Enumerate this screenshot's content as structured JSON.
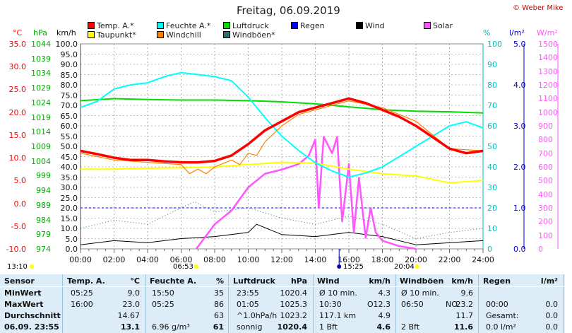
{
  "title": "Freitag, 06.09.2019",
  "copyright": "© Weber Mike",
  "legend": [
    {
      "label": "Temp. A.*",
      "color": "#ff0000"
    },
    {
      "label": "Feuchte A.*",
      "color": "#00ffff"
    },
    {
      "label": "Luftdruck",
      "color": "#00dd00"
    },
    {
      "label": "Regen",
      "color": "#0000ff"
    },
    {
      "label": "Wind",
      "color": "#000000"
    },
    {
      "label": "Solar",
      "color": "#ff55ff"
    },
    {
      "label": "Taupunkt*",
      "color": "#ffff00"
    },
    {
      "label": "Windchill",
      "color": "#ff8000"
    },
    {
      "label": "Windböen*",
      "color": "#2f6f6f"
    }
  ],
  "axis_headers": {
    "temp": "°C",
    "pressure": "hPa",
    "wind": "km/h",
    "humidity": "%",
    "rain": "l/m²",
    "solar": "W/m²"
  },
  "axes": {
    "temp": [
      "35.0",
      "30.0",
      "25.0",
      "20.0",
      "15.0",
      "10.0",
      "5.0",
      "0.0",
      "-5.0",
      "-10.0"
    ],
    "pressure": [
      "1044",
      "1039",
      "1034",
      "1029",
      "1024",
      "1019",
      "1014",
      "1009",
      "1004",
      "999",
      "994",
      "989",
      "984",
      "979",
      "974"
    ],
    "wind": [
      "100.0",
      "95.0",
      "90.0",
      "85.0",
      "80.0",
      "75.0",
      "70.0",
      "65.0",
      "60.0",
      "55.0",
      "50.0",
      "45.0",
      "40.0",
      "35.0",
      "30.0",
      "25.0",
      "20.0",
      "15.0",
      "10.0",
      "5.0",
      "0.0"
    ],
    "humidity": [
      "100",
      "90",
      "80",
      "70",
      "60",
      "50",
      "40",
      "30",
      "20",
      "10",
      "0"
    ],
    "rain": [
      "5.0",
      "4.0",
      "3.0",
      "2.0",
      "1.0",
      "0.0"
    ],
    "solar": [
      "1500",
      "1400",
      "1300",
      "1200",
      "1100",
      "1000",
      "900",
      "800",
      "700",
      "600",
      "500",
      "400",
      "300",
      "200",
      "100",
      "0"
    ],
    "time": [
      "00:00",
      "02:00",
      "04:00",
      "06:00",
      "08:00",
      "10:00",
      "12:00",
      "14:00",
      "16:00",
      "18:00",
      "20:00",
      "22:00",
      "24:00"
    ]
  },
  "sun_markers": {
    "left": "13:10",
    "sunrise": "06:53",
    "peak": "15:25",
    "sunset": "20:04"
  },
  "table": {
    "headers": [
      "Sensor",
      "Temp. A.",
      "°C",
      "Feuchte A.",
      "%",
      "Luftdruck",
      "hPa",
      "Wind",
      "km/h",
      "Windböen",
      "km/h",
      "Regen",
      "l/m²"
    ],
    "rows": [
      {
        "label": "MinWert",
        "temp_time": "05:25",
        "temp": "9.0",
        "hum_time": "15:50",
        "hum": "35",
        "press_time": "23:55",
        "press": "1020.4",
        "wind_a": "Ø 10 min.",
        "wind_b": "4.3",
        "gust_a": "Ø 10 min.",
        "gust_b": "9.6",
        "rain_a": "",
        "rain_b": ""
      },
      {
        "label": "MaxWert",
        "temp_time": "16:00",
        "temp": "23.0",
        "hum_time": "05:25",
        "hum": "86",
        "press_time": "01:05",
        "press": "1025.3",
        "wind_a": "10:30",
        "wind_mid": "O",
        "wind_b": "12.3",
        "gust_a": "06:50",
        "gust_mid": "NO",
        "gust_b": "23.2",
        "rain_a": "00:00",
        "rain_b": "0.0"
      },
      {
        "label": "Durchschnitt",
        "temp_time": "",
        "temp": "14.67",
        "hum_time": "",
        "hum": "63",
        "press_time": "^1.0hPa/h",
        "press": "1023.2",
        "wind_a": "117.1 km",
        "wind_b": "4.9",
        "gust_a": "",
        "gust_b": "11.7",
        "rain_a": "Gesamt:",
        "rain_b": "0.0"
      },
      {
        "label": "06.09. 23:55",
        "temp_time": "",
        "temp": "13.1",
        "hum_time": "6.96 g/m³",
        "hum": "61",
        "press_time": "sonnig",
        "press": "1020.4",
        "wind_a": "1 Bft",
        "wind_b": "4.6",
        "gust_a": "2 Bft",
        "gust_b": "11.6",
        "rain_a": "0.0 l/m²",
        "rain_b": "0.0"
      }
    ]
  },
  "chart_data": {
    "type": "line",
    "title": "Freitag, 06.09.2019",
    "x_unit": "hours",
    "xlim": [
      0,
      24
    ],
    "series": [
      {
        "name": "Temp. A.*",
        "axis": "°C",
        "ylim": [
          -10,
          35
        ],
        "color": "#ff0000",
        "x": [
          0,
          1,
          2,
          3,
          4,
          5,
          6,
          7,
          8,
          9,
          10,
          11,
          12,
          13,
          14,
          15,
          16,
          17,
          18,
          19,
          20,
          21,
          22,
          23,
          24
        ],
        "values": [
          11.5,
          10.8,
          10.0,
          9.5,
          9.5,
          9.2,
          9.0,
          9.0,
          9.3,
          10.5,
          13.0,
          16.0,
          18.0,
          20.0,
          21.0,
          22.0,
          23.0,
          22.0,
          20.5,
          19.0,
          17.0,
          14.5,
          12.0,
          11.0,
          11.5
        ]
      },
      {
        "name": "Taupunkt*",
        "axis": "°C",
        "ylim": [
          -10,
          35
        ],
        "color": "#ffff00",
        "x": [
          0,
          2,
          4,
          6,
          8,
          10,
          12,
          14,
          16,
          18,
          20,
          22,
          24
        ],
        "values": [
          7.5,
          7.5,
          7.7,
          7.8,
          8.0,
          8.5,
          9.0,
          8.8,
          7.5,
          6.5,
          6.0,
          4.5,
          5.0
        ]
      },
      {
        "name": "Windchill",
        "axis": "°C",
        "ylim": [
          -10,
          35
        ],
        "color": "#ff8000",
        "x": [
          0,
          2,
          4,
          6,
          6.5,
          7,
          7.5,
          8,
          9,
          9.5,
          10,
          10.5,
          11,
          12,
          13,
          14,
          16,
          18,
          20,
          22,
          24
        ],
        "values": [
          11.0,
          9.5,
          9.0,
          8.5,
          6.5,
          7.5,
          6.5,
          8.0,
          9.5,
          8.5,
          11.0,
          10.5,
          13.5,
          17.0,
          19.5,
          20.5,
          22.5,
          21.0,
          18.0,
          12.0,
          11.5
        ]
      },
      {
        "name": "Feuchte A.*",
        "axis": "%",
        "ylim": [
          0,
          100
        ],
        "color": "#00ffff",
        "x": [
          0,
          1,
          2,
          3,
          4,
          5,
          6,
          7,
          8,
          9,
          10,
          11,
          12,
          13,
          14,
          15,
          16,
          17,
          18,
          19,
          20,
          21,
          22,
          23,
          24
        ],
        "values": [
          69,
          72,
          78,
          80,
          81,
          84,
          86,
          85,
          84,
          82,
          74,
          64,
          55,
          48,
          42,
          38,
          35,
          37,
          40,
          45,
          50,
          55,
          60,
          62,
          59
        ]
      },
      {
        "name": "Luftdruck",
        "axis": "hPa",
        "ylim": [
          974,
          1044
        ],
        "color": "#00dd00",
        "x": [
          0,
          2,
          4,
          6,
          8,
          10,
          12,
          14,
          16,
          18,
          20,
          22,
          24
        ],
        "values": [
          1024.6,
          1025.3,
          1025.0,
          1024.8,
          1024.8,
          1024.6,
          1024.2,
          1023.5,
          1022.5,
          1021.5,
          1021.0,
          1020.8,
          1020.4
        ]
      },
      {
        "name": "Regen",
        "axis": "l/m²",
        "ylim": [
          0,
          5
        ],
        "color": "#0000ff",
        "x": [
          0,
          24
        ],
        "values": [
          1.0,
          1.0
        ]
      },
      {
        "name": "Wind",
        "axis": "km/h",
        "ylim": [
          0,
          100
        ],
        "color": "#000000",
        "x": [
          0,
          2,
          4,
          6,
          8,
          10,
          10.5,
          12,
          14,
          16,
          18,
          20,
          22,
          24
        ],
        "values": [
          2,
          4,
          3,
          5,
          6,
          8,
          12,
          7,
          6,
          8,
          6,
          2,
          3,
          4
        ]
      },
      {
        "name": "Windböen*",
        "axis": "km/h",
        "ylim": [
          0,
          100
        ],
        "color": "#2f6f6f",
        "x": [
          0,
          2,
          4,
          6,
          6.8,
          8,
          10,
          12,
          14,
          16,
          18,
          20,
          22,
          24
        ],
        "values": [
          10,
          14,
          12,
          20,
          23,
          18,
          20,
          15,
          12,
          16,
          12,
          5,
          8,
          10
        ]
      },
      {
        "name": "Solar",
        "axis": "W/m²",
        "ylim": [
          0,
          1500
        ],
        "color": "#ff55ff",
        "x": [
          6.9,
          8,
          9,
          10,
          11,
          12,
          13,
          13.6,
          14,
          14.2,
          14.5,
          15,
          15.3,
          15.6,
          16,
          16.3,
          16.6,
          17,
          17.3,
          17.6,
          18,
          18.5,
          19,
          20
        ],
        "values": [
          0,
          180,
          280,
          450,
          550,
          580,
          620,
          680,
          800,
          300,
          820,
          700,
          820,
          200,
          620,
          120,
          520,
          80,
          300,
          120,
          60,
          40,
          20,
          0
        ]
      }
    ]
  }
}
